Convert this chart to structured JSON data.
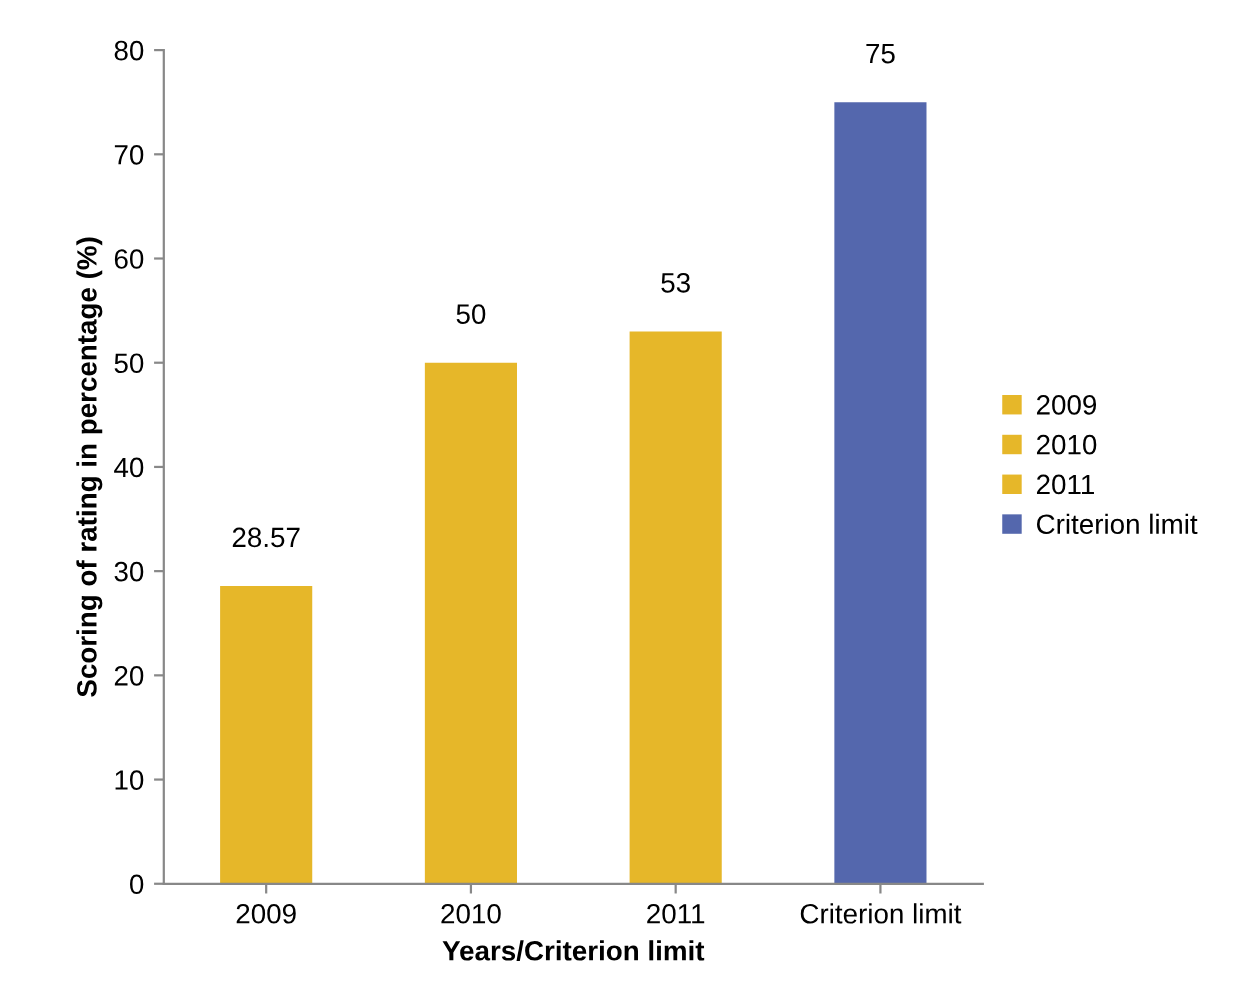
{
  "chart_data": {
    "type": "bar",
    "xlabel": "Years/Criterion limit",
    "ylabel": "Scoring of rating in percentage (%)",
    "categories": [
      "2009",
      "2010",
      "2011",
      "Criterion limit"
    ],
    "series": [
      {
        "name": "2009",
        "color": "#e6b729",
        "values": [
          28.57,
          null,
          null,
          null
        ]
      },
      {
        "name": "2010",
        "color": "#e6b729",
        "values": [
          null,
          50,
          null,
          null
        ]
      },
      {
        "name": "2011",
        "color": "#e6b729",
        "values": [
          null,
          null,
          53,
          null
        ]
      },
      {
        "name": "Criterion limit",
        "color": "#5467ad",
        "values": [
          null,
          null,
          null,
          75
        ]
      }
    ],
    "ylim": [
      0,
      80
    ],
    "yticks": [
      0,
      10,
      20,
      30,
      40,
      50,
      60,
      70,
      80
    ],
    "data_labels": true,
    "grid": false,
    "legend": "right"
  }
}
